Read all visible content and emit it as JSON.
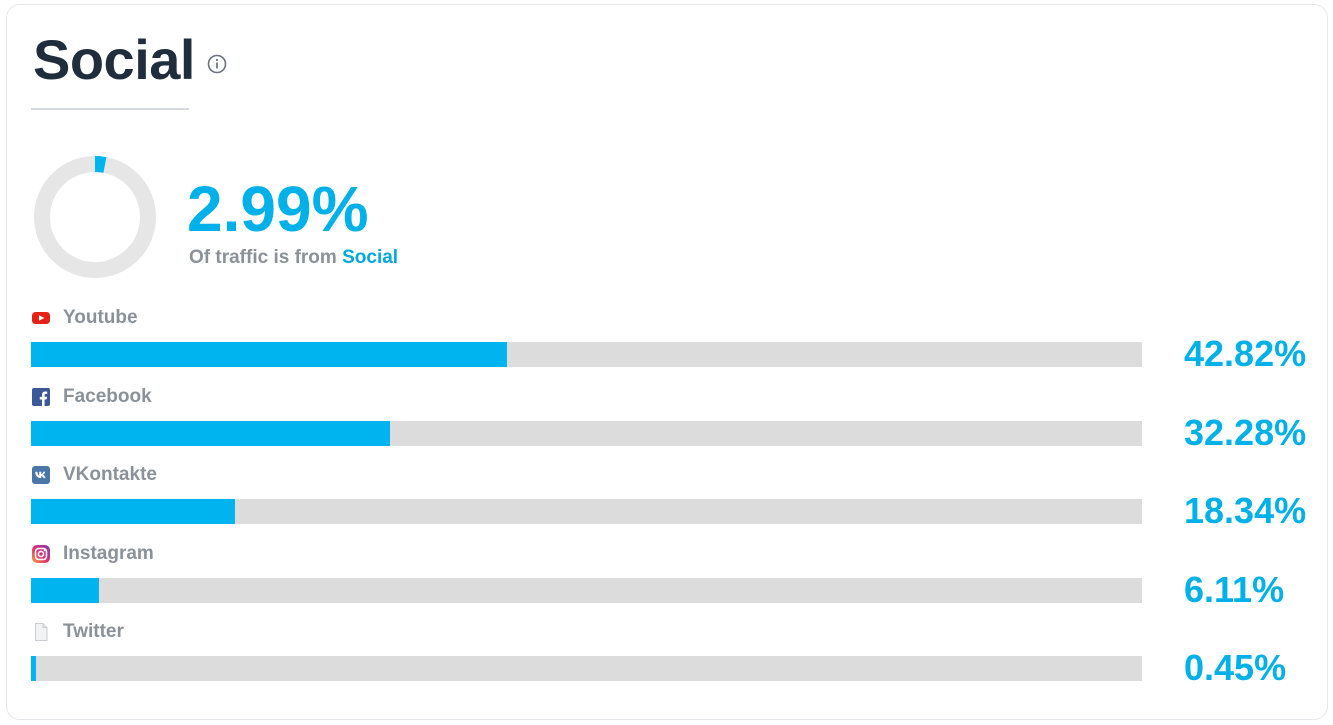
{
  "header": {
    "title": "Social",
    "info_icon": "info-circle-icon"
  },
  "summary": {
    "value_label": "2.99%",
    "value": 2.99,
    "caption_prefix": "Of traffic is from",
    "caption_highlight": "Social"
  },
  "colors": {
    "accent": "#00b4ef",
    "track": "#dcdcdc",
    "title": "#1f2d3d",
    "label": "#8a9199"
  },
  "chart_data": {
    "type": "bar",
    "orientation": "horizontal",
    "xlim": [
      0,
      100
    ],
    "categories": [
      "Youtube",
      "Facebook",
      "VKontakte",
      "Instagram",
      "Twitter"
    ],
    "values": [
      42.82,
      32.28,
      18.34,
      6.11,
      0.45
    ],
    "value_labels": [
      "42.82%",
      "32.28%",
      "18.34%",
      "6.11%",
      "0.45%"
    ],
    "icons": [
      "youtube-icon",
      "facebook-icon",
      "vkontakte-icon",
      "instagram-icon",
      "twitter-icon"
    ]
  }
}
